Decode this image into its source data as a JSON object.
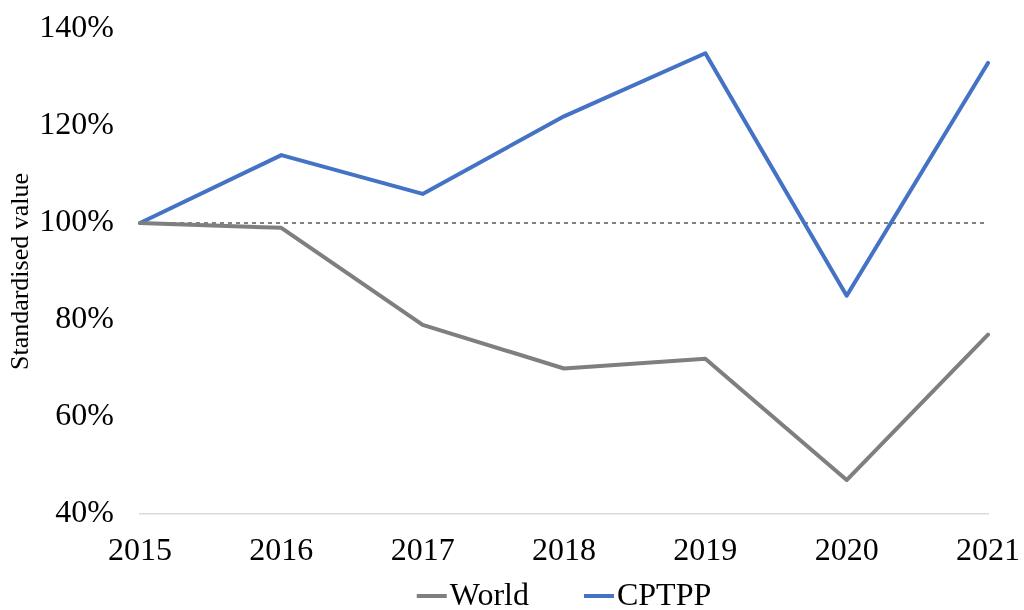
{
  "chart_data": {
    "type": "line",
    "ylabel": "Standardised value",
    "categories": [
      "2015",
      "2016",
      "2017",
      "2018",
      "2019",
      "2020",
      "2021"
    ],
    "series": [
      {
        "name": "World",
        "color": "#7f7f7f",
        "values": [
          100,
          99,
          79,
          70,
          72,
          47,
          77
        ]
      },
      {
        "name": "CPTPP",
        "color": "#4472c4",
        "values": [
          100,
          114,
          106,
          122,
          135,
          85,
          133
        ]
      }
    ],
    "ylim": [
      40,
      140
    ],
    "yticks": [
      {
        "value": 40,
        "label": "40%"
      },
      {
        "value": 60,
        "label": "60%"
      },
      {
        "value": 80,
        "label": "80%"
      },
      {
        "value": 100,
        "label": "100%"
      },
      {
        "value": 120,
        "label": "120%"
      },
      {
        "value": 140,
        "label": "140%"
      }
    ],
    "ref_lines": [
      {
        "axis": "y",
        "value": 100,
        "color": "#595959",
        "line_style": "dashed"
      }
    ],
    "grid": false,
    "legend": "bottom"
  }
}
